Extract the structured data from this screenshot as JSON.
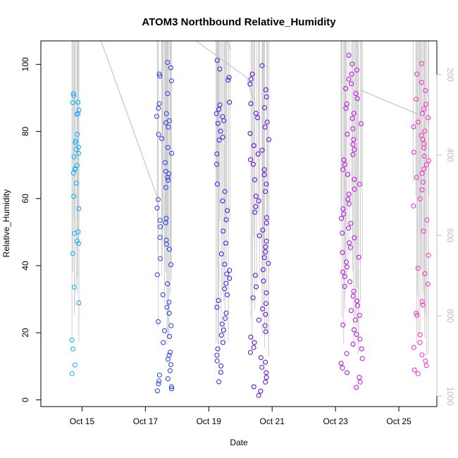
{
  "chart_data": {
    "type": "scatter",
    "title": "ATOM3 Northbound Relative_Humidity",
    "xlabel": "Date",
    "ylabel": "Relative_Humidity",
    "x_ticks": [
      "Oct 15",
      "Oct 17",
      "Oct 19",
      "Oct 21",
      "Oct 23",
      "Oct 25"
    ],
    "x_tick_day": [
      15,
      17,
      19,
      21,
      23,
      25
    ],
    "xlim_day": [
      13.7,
      26.2
    ],
    "ylim": [
      -2,
      107
    ],
    "y_ticks": [
      0,
      20,
      40,
      60,
      80,
      100
    ],
    "y2_ticks": [
      200,
      400,
      600,
      800,
      1000
    ],
    "y2lim": [
      1026,
      116
    ],
    "y2_color": "#bdbdbd",
    "grid": false,
    "legend": "none",
    "marker": "open-circle",
    "color_gradient": [
      "#00b4ff",
      "#1f3df0",
      "#4f00e0",
      "#b200ef",
      "#ff28c8"
    ],
    "series": [
      {
        "day": 14.8,
        "spread": 0.12,
        "y": [
          91.3,
          90.7,
          88.7,
          88.6,
          86.4,
          85.3,
          85.1,
          79.1,
          77.2,
          76.7,
          75.3,
          74.7,
          73.5,
          72.4,
          69.9,
          68.9,
          68.7,
          67.6,
          64.6,
          60.6,
          57,
          50.1,
          49.6,
          47.3,
          46.6,
          43.6,
          33.6,
          28.9,
          17.8,
          15.2,
          10.4,
          7.8
        ]
      },
      {
        "day": 17.6,
        "spread": 0.25,
        "y": [
          100.6,
          99,
          97.1,
          96.5,
          95.1,
          91.3,
          88.3,
          86.9,
          85.3,
          84.5,
          83.2,
          82.6,
          81.3,
          79.1,
          77.9,
          75.2,
          73.5,
          70.7,
          68.1,
          67.4,
          66.3,
          65.5,
          63.3,
          59.7,
          57.2,
          54.1,
          53.5,
          52.8,
          51.6,
          48.4,
          47.6,
          46.4,
          44.9,
          42.1,
          40.3,
          37.3,
          34.6,
          31.3,
          29.1,
          27.6,
          25.8,
          23.3,
          22.1,
          20.6,
          18.9,
          17.1,
          14.2,
          13.3,
          12.1,
          10.5,
          8.7,
          7.4,
          6.3,
          5.6,
          4.8,
          3.9,
          3.3,
          2.7
        ]
      },
      {
        "day": 19.45,
        "spread": 0.22,
        "y": [
          101.2,
          98.6,
          96.1,
          95.3,
          88.7,
          87.9,
          86.6,
          85.3,
          84.4,
          83.2,
          82.4,
          80.1,
          78.3,
          77.4,
          73.3,
          70.2,
          64.3,
          62.1,
          59.3,
          56.4,
          53.7,
          50.3,
          46.7,
          43.5,
          40.4,
          38.6,
          37.5,
          36.2,
          34.7,
          33.1,
          31.3,
          29.6,
          27.6,
          25.9,
          24.3,
          22.6,
          20.8,
          19.3,
          17.1,
          15.2,
          13.3,
          11.6,
          10.1,
          8.2,
          5.4
        ]
      },
      {
        "day": 20.6,
        "spread": 0.3,
        "y": [
          99.6,
          97.1,
          95.6,
          94.1,
          92.4,
          90.3,
          88.3,
          87.1,
          85.4,
          84.1,
          82.8,
          81.3,
          79.4,
          77.6,
          75.8,
          74.4,
          73.3,
          71.6,
          70.2,
          68.6,
          67.1,
          65.6,
          64.3,
          62.1,
          60.7,
          59.3,
          57.6,
          55.9,
          54.3,
          52.7,
          50.6,
          48.9,
          47.3,
          45.6,
          44.1,
          42.4,
          40.7,
          38.8,
          37.1,
          35.4,
          33.7,
          31.9,
          30.4,
          28.7,
          27.1,
          25.5,
          23.8,
          22.1,
          20.3,
          18.7,
          17.1,
          15.6,
          14.1,
          12.6,
          11.2,
          9.7,
          8.1,
          6.7,
          5.3,
          3.9,
          2.6,
          1.3
        ]
      },
      {
        "day": 23.5,
        "spread": 0.35,
        "y": [
          102.7,
          100.1,
          98.3,
          97.1,
          95.6,
          94.2,
          92.8,
          91.3,
          89.8,
          88.2,
          86.9,
          85.4,
          83.9,
          82.3,
          80.8,
          79.2,
          77.6,
          76.1,
          74.6,
          73.1,
          71.5,
          70.1,
          68.6,
          67.2,
          65.7,
          64.3,
          62.8,
          61.3,
          59.8,
          58.4,
          56.9,
          55.4,
          54.1,
          52.6,
          51.2,
          49.7,
          48.3,
          46.8,
          45.4,
          43.9,
          42.5,
          41.1,
          39.6,
          38.1,
          36.7,
          35.2,
          33.8,
          32.4,
          30.9,
          29.5,
          28.1,
          26.6,
          25.2,
          23.8,
          22.3,
          20.9,
          19.5,
          18.1,
          16.6,
          15.2,
          13.8,
          12.3,
          10.9,
          9.5,
          8.1,
          6.7,
          5.3,
          3.7
        ]
      },
      {
        "day": 25.7,
        "spread": 0.25,
        "y": [
          100.2,
          97.1,
          94.6,
          92.2,
          89.6,
          88.1,
          86.7,
          85.3,
          84.1,
          82.8,
          81.4,
          80.1,
          78.8,
          77.6,
          76.3,
          75.1,
          73.8,
          72.6,
          71.3,
          70.1,
          68.8,
          67.5,
          66.3,
          64.9,
          62.6,
          59.9,
          57.8,
          53.6,
          50.3,
          43.1,
          39.2,
          37.6,
          34.5,
          29.3,
          28.3,
          25.9,
          25.2,
          19.4,
          17.1,
          15.6,
          13.4,
          11.6,
          10.2,
          8.9,
          7.8
        ]
      }
    ]
  }
}
